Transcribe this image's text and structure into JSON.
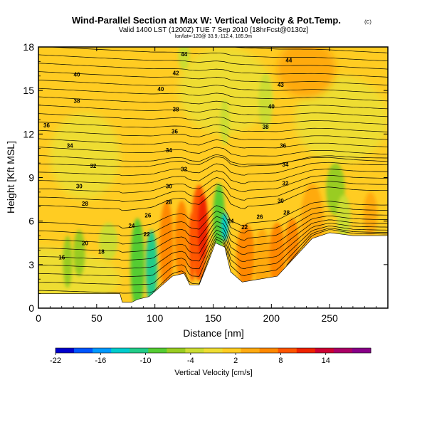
{
  "header": {
    "title": "Wind-Parallel Section at Max W: Vertical Velocity & Pot.Temp.",
    "copyright": "(C)",
    "valid_line": "Valid 1400 LST (1200Z) TUE 7 Sep 2010 [18hrFcst@0130z]",
    "location_line": "lon/lat=-120@ 33.9,-112.4, 185.9m"
  },
  "chart_data": {
    "type": "heatmap",
    "xlabel": "Distance [nm]",
    "ylabel": "Height [Kft MSL]",
    "xlim": [
      0,
      300
    ],
    "ylim": [
      0,
      18
    ],
    "x_ticks": [
      "0",
      "50",
      "100",
      "150",
      "200",
      "250"
    ],
    "x_tick_values": [
      0,
      50,
      100,
      150,
      200,
      250
    ],
    "y_ticks": [
      "0",
      "3",
      "6",
      "9",
      "12",
      "15",
      "18"
    ],
    "y_tick_values": [
      0,
      3,
      6,
      9,
      12,
      15,
      18
    ],
    "colorbar": {
      "label": "Vertical Velocity [cm/s]",
      "ticks": [
        "-22",
        "-16",
        "-10",
        "-4",
        "2",
        "8",
        "14"
      ],
      "tick_values": [
        -22,
        -16,
        -10,
        -4,
        2,
        8,
        14
      ],
      "range": [
        -22,
        20
      ],
      "colors": [
        "#0000cc",
        "#0055ff",
        "#0099ff",
        "#00cccc",
        "#22cc88",
        "#55cc33",
        "#99cc22",
        "#ccdd33",
        "#eedd33",
        "#ffcc22",
        "#ffaa11",
        "#ff8800",
        "#ff5500",
        "#ee2200",
        "#cc0033",
        "#aa0066",
        "#880088"
      ]
    },
    "terrain_profile": [
      [
        0,
        1.0
      ],
      [
        70,
        1.0
      ],
      [
        72,
        0.4
      ],
      [
        80,
        0.4
      ],
      [
        85,
        0.6
      ],
      [
        95,
        0.8
      ],
      [
        105,
        1.5
      ],
      [
        115,
        2.2
      ],
      [
        125,
        2.4
      ],
      [
        130,
        1.6
      ],
      [
        138,
        1.6
      ],
      [
        145,
        3.0
      ],
      [
        152,
        4.5
      ],
      [
        160,
        4.2
      ],
      [
        165,
        2.5
      ],
      [
        175,
        1.8
      ],
      [
        190,
        2.0
      ],
      [
        205,
        2.2
      ],
      [
        220,
        3.5
      ],
      [
        235,
        4.8
      ],
      [
        250,
        5.2
      ],
      [
        270,
        5.0
      ],
      [
        300,
        5.0
      ]
    ],
    "isentrope_labels": [
      {
        "label": "44",
        "x": 125,
        "y": 17.5
      },
      {
        "label": "44",
        "x": 215,
        "y": 17.1
      },
      {
        "label": "42",
        "x": 118,
        "y": 16.2
      },
      {
        "label": "43",
        "x": 208,
        "y": 15.4
      },
      {
        "label": "40",
        "x": 33,
        "y": 16.1
      },
      {
        "label": "40",
        "x": 105,
        "y": 15.1
      },
      {
        "label": "40",
        "x": 200,
        "y": 13.9
      },
      {
        "label": "38",
        "x": 33,
        "y": 14.3
      },
      {
        "label": "38",
        "x": 118,
        "y": 13.7
      },
      {
        "label": "38",
        "x": 195,
        "y": 12.5
      },
      {
        "label": "36",
        "x": 7,
        "y": 12.6
      },
      {
        "label": "36",
        "x": 117,
        "y": 12.2
      },
      {
        "label": "36",
        "x": 210,
        "y": 11.2
      },
      {
        "label": "34",
        "x": 27,
        "y": 11.2
      },
      {
        "label": "34",
        "x": 112,
        "y": 10.9
      },
      {
        "label": "34",
        "x": 212,
        "y": 9.9
      },
      {
        "label": "32",
        "x": 47,
        "y": 9.8
      },
      {
        "label": "32",
        "x": 125,
        "y": 9.6
      },
      {
        "label": "32",
        "x": 212,
        "y": 8.6
      },
      {
        "label": "30",
        "x": 35,
        "y": 8.4
      },
      {
        "label": "30",
        "x": 112,
        "y": 8.4
      },
      {
        "label": "30",
        "x": 208,
        "y": 7.4
      },
      {
        "label": "28",
        "x": 40,
        "y": 7.2
      },
      {
        "label": "28",
        "x": 112,
        "y": 7.3
      },
      {
        "label": "28",
        "x": 213,
        "y": 6.6
      },
      {
        "label": "26",
        "x": 94,
        "y": 6.4
      },
      {
        "label": "26",
        "x": 190,
        "y": 6.3
      },
      {
        "label": "24",
        "x": 80,
        "y": 5.7
      },
      {
        "label": "24",
        "x": 165,
        "y": 6.0
      },
      {
        "label": "22",
        "x": 93,
        "y": 5.1
      },
      {
        "label": "22",
        "x": 177,
        "y": 5.6
      },
      {
        "label": "20",
        "x": 40,
        "y": 4.5
      },
      {
        "label": "18",
        "x": 54,
        "y": 3.9
      },
      {
        "label": "16",
        "x": 20,
        "y": 3.5
      }
    ]
  }
}
